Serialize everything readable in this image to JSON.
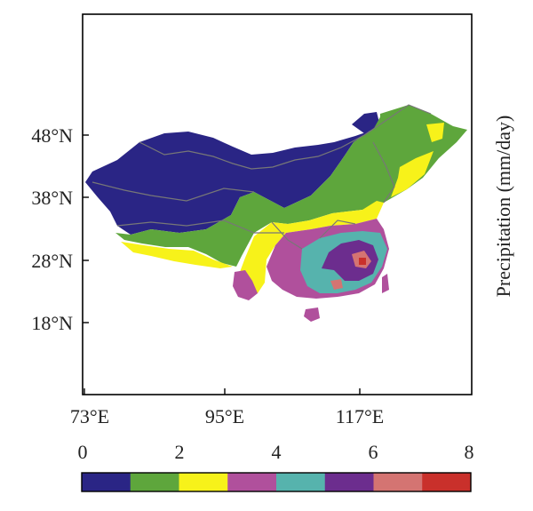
{
  "map": {
    "lat_ticks": [
      "48°N",
      "38°N",
      "28°N",
      "18°N"
    ],
    "lon_ticks": [
      "73°E",
      "95°E",
      "117°E"
    ],
    "colorbar_title": "Precipitation (mm/day)",
    "colorbar_ticks": [
      "0",
      "2",
      "4",
      "6",
      "8"
    ]
  },
  "colors": {
    "bins": [
      "#2a2585",
      "#5ea63c",
      "#f7f21a",
      "#b0509c",
      "#56b3ad",
      "#6c2d8e",
      "#d47472",
      "#c9302b"
    ],
    "boundary": "#777777",
    "frame": "#000000"
  },
  "chart_data": {
    "type": "heatmap",
    "variable": "Precipitation (mm/day)",
    "color_scale_range": [
      0,
      8
    ],
    "color_bins": [
      [
        0,
        1
      ],
      [
        1,
        2
      ],
      [
        2,
        3
      ],
      [
        3,
        4
      ],
      [
        4,
        5
      ],
      [
        5,
        6
      ],
      [
        6,
        7
      ],
      [
        7,
        8
      ]
    ],
    "lon_ticks": [
      73,
      95,
      117
    ],
    "lat_ticks": [
      48,
      38,
      28,
      18
    ]
  }
}
